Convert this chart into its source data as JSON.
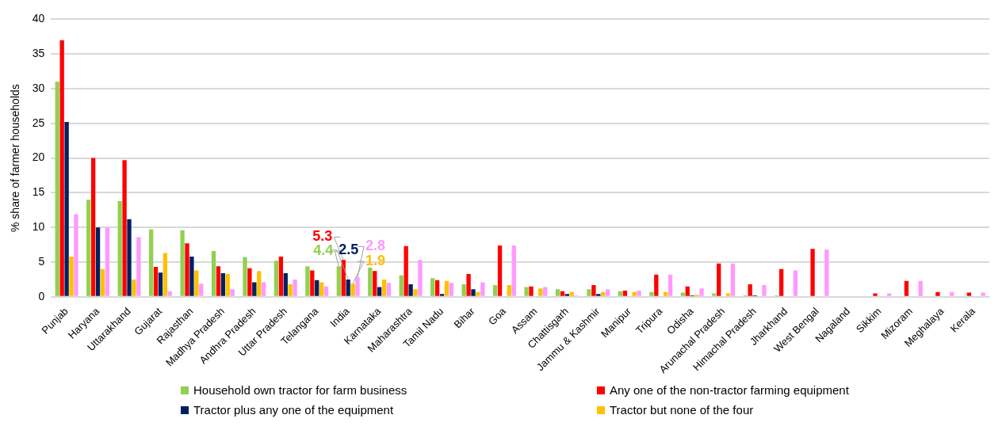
{
  "chart_data": {
    "type": "bar",
    "ylabel": "% share of farmer households",
    "categories": [
      "Punjab",
      "Haryana",
      "Uttarakhand",
      "Gujarat",
      "Rajasthan",
      "Madhya Pradesh",
      "Andhra Pradesh",
      "Uttar Pradesh",
      "Telangana",
      "India",
      "Karnataka",
      "Maharashtra",
      "Tamil Nadu",
      "Bihar",
      "Goa",
      "Assam",
      "Chattisgarh",
      "Jammu & Kashmir",
      "Manipur",
      "Tripura",
      "Odisha",
      "Arunachal Pradesh",
      "Himachal Pradesh",
      "Jharkhand",
      "West Bengal",
      "Nagaland",
      "Sikkim",
      "Mizoram",
      "Meghalaya",
      "Kerala"
    ],
    "series": [
      {
        "name": "Household own tractor for farm business",
        "color": "#92d050",
        "values": [
          31,
          14,
          13.8,
          9.7,
          9.6,
          6.6,
          5.7,
          5.2,
          4.4,
          4.4,
          4.2,
          3.1,
          2.7,
          1.8,
          1.7,
          1.4,
          1.1,
          1.1,
          0.8,
          0.7,
          0.6,
          0.5,
          0.2,
          0.2,
          null,
          0,
          0,
          0,
          0,
          0
        ]
      },
      {
        "name": "Any one of the non-tractor farming equipment",
        "color": "#ff0000",
        "values": [
          37,
          20,
          19.7,
          4.3,
          7.7,
          4.4,
          4.1,
          5.8,
          3.8,
          5.3,
          3.7,
          7.3,
          2.4,
          3.3,
          7.4,
          1.5,
          0.8,
          1.7,
          0.9,
          3.2,
          1.5,
          4.8,
          1.8,
          4.0,
          6.9,
          0,
          0.5,
          2.3,
          0.7,
          0.6
        ]
      },
      {
        "name": "Tractor plus any one of the equipment",
        "color": "#002060",
        "values": [
          25.2,
          10,
          11.2,
          3.5,
          5.8,
          3.4,
          2.1,
          3.4,
          2.4,
          2.5,
          1.4,
          1.8,
          0.4,
          1.1,
          0,
          0,
          0.4,
          0.4,
          0,
          0,
          0.2,
          0,
          0.2,
          null,
          0,
          0,
          0,
          0,
          0,
          0
        ]
      },
      {
        "name": "Tractor but none of the four",
        "color": "#ffc000",
        "values": [
          5.8,
          4,
          2.5,
          6.3,
          3.8,
          3.3,
          3.7,
          1.8,
          2.1,
          1.9,
          2.5,
          1.1,
          2.3,
          0.7,
          1.7,
          1.2,
          0.7,
          0.7,
          0.7,
          0.7,
          0.3,
          0.5,
          0,
          0,
          0,
          0,
          0,
          0,
          0,
          0
        ]
      },
      {
        "color": "#ff99ff",
        "values": [
          11.9,
          10,
          8.6,
          0.8,
          1.9,
          1.1,
          2.1,
          2.5,
          1.5,
          2.8,
          2.0,
          5.3,
          2.0,
          2.1,
          7.4,
          1.4,
          0.2,
          1.1,
          0.9,
          3.2,
          1.2,
          4.8,
          1.7,
          3.8,
          6.8,
          0,
          0.5,
          2.3,
          0.7,
          0.6
        ]
      }
    ],
    "ylim": [
      0,
      40
    ],
    "yticks": [
      0,
      5,
      10,
      15,
      20,
      25,
      30,
      35,
      40
    ],
    "grid": "y",
    "legend": "bottom",
    "annotations": [
      {
        "text": "4.4",
        "x": "India",
        "y": 4.4
      },
      {
        "text": "5.3",
        "x": "India",
        "y": 5.3
      },
      {
        "text": "2.5",
        "x": "India",
        "y": 2.5
      },
      {
        "text": "1.9",
        "x": "India",
        "y": 1.9
      },
      {
        "text": "2.8",
        "x": "India",
        "y": 2.8
      }
    ]
  }
}
